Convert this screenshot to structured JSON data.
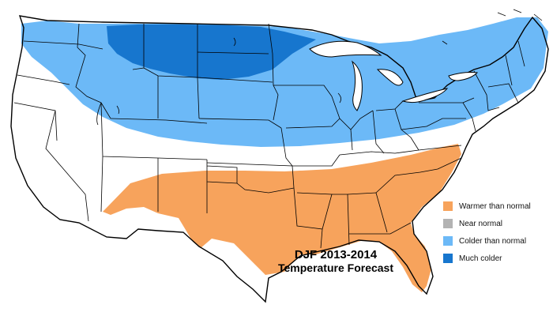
{
  "title": {
    "line1": "DJF 2013-2014",
    "line2": "Temperature Forecast"
  },
  "legend": [
    {
      "label": "Warmer than normal",
      "color": "#F7A35C"
    },
    {
      "label": "Near normal",
      "color": "#B3B3B3"
    },
    {
      "label": "Colder than normal",
      "color": "#6CB9F7"
    },
    {
      "label": "Much colder",
      "color": "#1776CE"
    }
  ],
  "colors": {
    "background": "#FFFFFF",
    "borders": "#000000",
    "warmer": "#F7A35C",
    "colder": "#6CB9F7",
    "much_colder": "#1776CE"
  }
}
